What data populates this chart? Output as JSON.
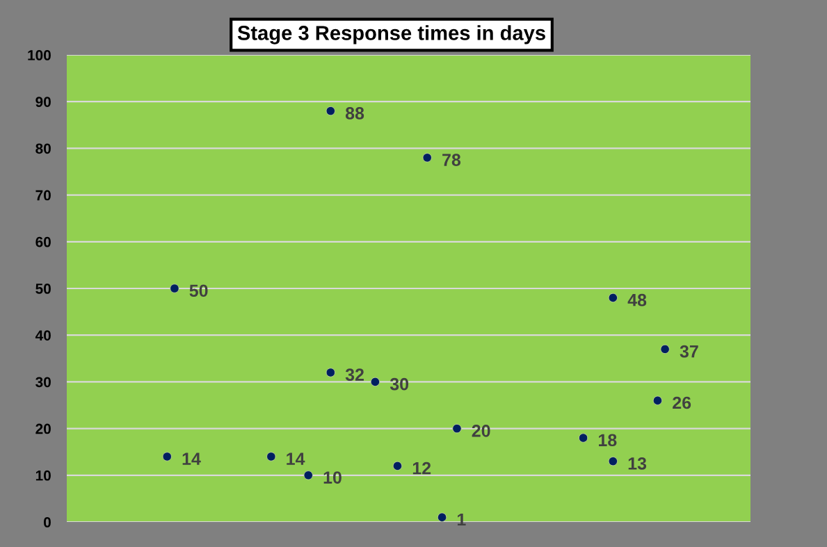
{
  "chart_data": {
    "type": "scatter",
    "title": "Stage 3 Response times in days",
    "categories": [
      null,
      null,
      null,
      null,
      null,
      null,
      null,
      null,
      null,
      null,
      null,
      null,
      null,
      null,
      null,
      null,
      null,
      null,
      null,
      null,
      null,
      null,
      null,
      null,
      null,
      null,
      null,
      null,
      null,
      null,
      null,
      null,
      null,
      null,
      null,
      null,
      null,
      null,
      null,
      null,
      null,
      null,
      null,
      null,
      null,
      null,
      null,
      null,
      null,
      null,
      null,
      null,
      null,
      null,
      null,
      null,
      null,
      null,
      null,
      null,
      null,
      null,
      null,
      null,
      null,
      null,
      null,
      null,
      null,
      null,
      null,
      null,
      null,
      null,
      null,
      null,
      null,
      null,
      null,
      null,
      null,
      null,
      null,
      null,
      null,
      null,
      null,
      null,
      null,
      null,
      null,
      null
    ],
    "series": [
      {
        "color": "#002060",
        "values": [
          null,
          null,
          null,
          null,
          null,
          null,
          null,
          null,
          null,
          null,
          null,
          null,
          null,
          14,
          50,
          null,
          null,
          null,
          null,
          null,
          null,
          null,
          null,
          null,
          null,
          null,
          null,
          14,
          null,
          null,
          null,
          null,
          10,
          null,
          null,
          88,
          null,
          null,
          null,
          null,
          null,
          30,
          null,
          null,
          12,
          null,
          null,
          null,
          78,
          null,
          1,
          null,
          20,
          null,
          null,
          null,
          null,
          null,
          null,
          null,
          null,
          null,
          null,
          null,
          null,
          null,
          null,
          null,
          null,
          18,
          null,
          null,
          null,
          48,
          null,
          null,
          null,
          null,
          null,
          26,
          37,
          null,
          null,
          null,
          null,
          null,
          null,
          null,
          null,
          null,
          null,
          null
        ]
      },
      {
        "color": "#002060",
        "values": [
          null,
          null,
          null,
          null,
          null,
          null,
          null,
          null,
          null,
          null,
          null,
          null,
          null,
          null,
          null,
          null,
          null,
          null,
          null,
          null,
          null,
          null,
          null,
          null,
          null,
          null,
          null,
          null,
          null,
          null,
          null,
          null,
          null,
          null,
          null,
          32,
          null,
          null,
          null,
          null,
          null,
          null,
          null,
          null,
          null,
          null,
          null,
          null,
          null,
          null,
          null,
          null,
          null,
          null,
          null,
          null,
          null,
          null,
          null,
          null,
          null,
          null,
          null,
          null,
          null,
          null,
          null,
          null,
          null,
          null,
          null,
          null,
          null,
          13,
          null,
          null,
          null,
          null,
          null,
          null,
          null,
          null,
          null,
          null,
          null,
          null,
          null,
          null,
          null,
          null,
          null,
          null
        ]
      }
    ],
    "ylim": [
      0,
      100
    ],
    "yticks": [
      0,
      10,
      20,
      30,
      40,
      50,
      60,
      70,
      80,
      90,
      100
    ],
    "grid": "y",
    "marker": "circle",
    "data_labels": true,
    "tick_labels": "y"
  }
}
